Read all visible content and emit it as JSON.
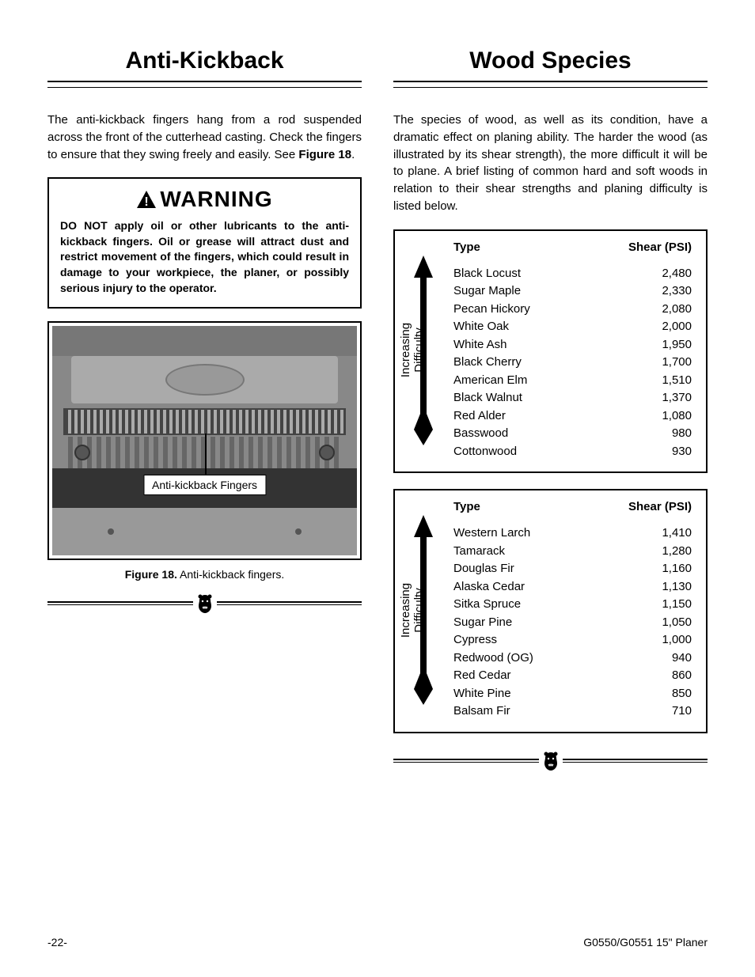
{
  "left": {
    "title": "Anti-Kickback",
    "intro": "The anti-kickback fingers hang from a rod suspended across the front of the cutterhead casting. Check the fingers to ensure that they swing freely and easily. See ",
    "intro_figref": "Figure 18",
    "intro_tail": ".",
    "warning": {
      "word": "WARNING",
      "body": "DO NOT apply oil or other lubricants to the anti-kickback fingers. Oil or grease will attract dust and restrict movement of the fingers, which could result in damage to your workpiece, the planer, or possibly serious injury to the operator."
    },
    "figure": {
      "callout": "Anti-kickback Fingers",
      "label": "Figure 18.",
      "caption": " Anti-kickback fingers."
    }
  },
  "right": {
    "title": "Wood Species",
    "intro": "The species of wood, as well as its condition, have a dramatic effect on planing ability. The harder the wood (as illustrated by its shear strength), the more difficult it will be to plane. A brief listing of common hard and soft woods in relation to their shear strengths and planing difficulty is listed below.",
    "arrow_label_line1": "Increasing",
    "arrow_label_line2": "Difficulty",
    "table_head_type": "Type",
    "table_head_shear": "Shear (PSI)",
    "hardwoods": [
      {
        "type": "Black Locust",
        "psi": "2,480"
      },
      {
        "type": "Sugar Maple",
        "psi": "2,330"
      },
      {
        "type": "Pecan Hickory",
        "psi": "2,080"
      },
      {
        "type": "White Oak",
        "psi": "2,000"
      },
      {
        "type": "White Ash",
        "psi": "1,950"
      },
      {
        "type": "Black Cherry",
        "psi": "1,700"
      },
      {
        "type": "American Elm",
        "psi": "1,510"
      },
      {
        "type": "Black Walnut",
        "psi": "1,370"
      },
      {
        "type": "Red Alder",
        "psi": "1,080"
      },
      {
        "type": "Basswood",
        "psi": "980"
      },
      {
        "type": "Cottonwood",
        "psi": "930"
      }
    ],
    "softwoods": [
      {
        "type": "Western Larch",
        "psi": "1,410"
      },
      {
        "type": "Tamarack",
        "psi": "1,280"
      },
      {
        "type": "Douglas Fir",
        "psi": "1,160"
      },
      {
        "type": "Alaska Cedar",
        "psi": "1,130"
      },
      {
        "type": "Sitka Spruce",
        "psi": "1,150"
      },
      {
        "type": "Sugar Pine",
        "psi": "1,050"
      },
      {
        "type": "Cypress",
        "psi": "1,000"
      },
      {
        "type": "Redwood (OG)",
        "psi": "940"
      },
      {
        "type": "Red Cedar",
        "psi": "860"
      },
      {
        "type": "White Pine",
        "psi": "850"
      },
      {
        "type": "Balsam Fir",
        "psi": "710"
      }
    ]
  },
  "footer": {
    "page": "-22-",
    "product": "G0550/G0551 15\" Planer"
  },
  "colors": {
    "text": "#000000",
    "bg": "#ffffff",
    "border": "#000000"
  }
}
